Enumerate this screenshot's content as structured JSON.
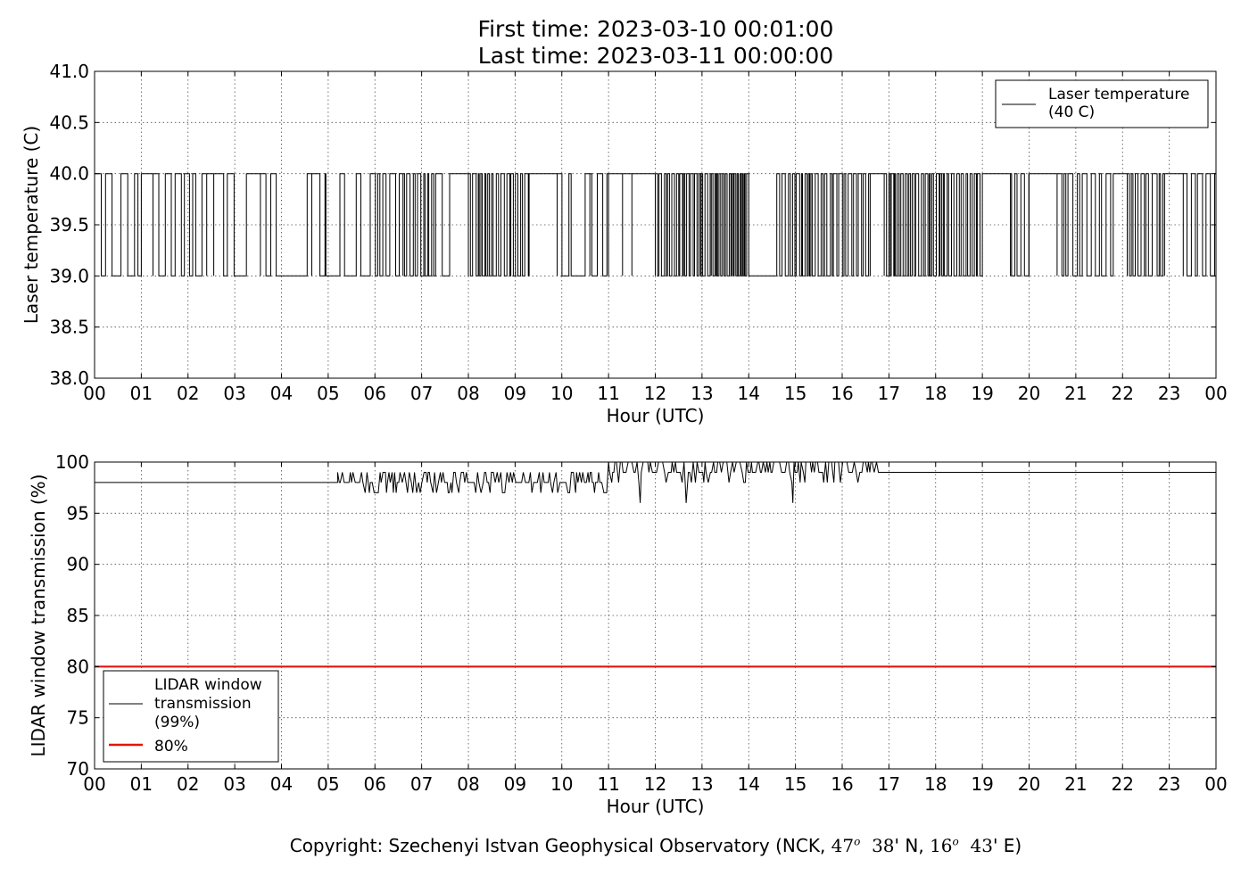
{
  "figure": {
    "title_line1": "First time: 2023-03-10 00:01:00",
    "title_line2": "Last time: 2023-03-11 00:00:00",
    "copyright_prefix": "Copyright: Szechenyi Istvan Geophysical Observatory (NCK, ",
    "lat_deg": "47",
    "lat_min": "38",
    "lat_hemi": "N, ",
    "lon_deg": "16",
    "lon_min": "43",
    "lon_hemi": "E)",
    "degree_symbol": "o"
  },
  "chart_data": [
    {
      "type": "line",
      "xlabel": "Hour (UTC)",
      "ylabel": "Laser temperature (C)",
      "xlim": [
        0,
        24
      ],
      "ylim": [
        38.0,
        41.0
      ],
      "xticks": [
        "00",
        "01",
        "02",
        "03",
        "04",
        "05",
        "06",
        "07",
        "08",
        "09",
        "10",
        "11",
        "12",
        "13",
        "14",
        "15",
        "16",
        "17",
        "18",
        "19",
        "20",
        "21",
        "22",
        "23",
        "00"
      ],
      "yticks": [
        "38.0",
        "38.5",
        "39.0",
        "39.5",
        "40.0",
        "40.5",
        "41.0"
      ],
      "grid": true,
      "legend_position": "top-right",
      "series": [
        {
          "name": "Laser temperature\n(40 C)",
          "color": "#000000",
          "values_range": [
            39.0,
            40.0
          ],
          "toggle_intervals_hours": [
            [
              0.0,
              1.0,
              0.12
            ],
            [
              1.0,
              1.25,
              0.0
            ],
            [
              1.25,
              2.4,
              0.1
            ],
            [
              2.4,
              2.55,
              0.0
            ],
            [
              2.55,
              3.0,
              0.15
            ],
            [
              3.25,
              3.55,
              0.0
            ],
            [
              3.55,
              4.0,
              0.14
            ],
            [
              4.55,
              4.65,
              0.0
            ],
            [
              4.65,
              4.95,
              0.12
            ],
            [
              5.25,
              5.35,
              0.0
            ],
            [
              5.6,
              5.7,
              0.0
            ],
            [
              5.9,
              6.6,
              0.08
            ],
            [
              6.6,
              7.3,
              0.05
            ],
            [
              7.3,
              7.6,
              0.2
            ],
            [
              7.6,
              8.0,
              0.0
            ],
            [
              8.0,
              9.3,
              0.05
            ],
            [
              9.3,
              9.9,
              0.0
            ],
            [
              9.9,
              10.2,
              0.1
            ],
            [
              10.5,
              10.6,
              0.0
            ],
            [
              10.6,
              11.0,
              0.1
            ],
            [
              11.0,
              11.3,
              0.0
            ],
            [
              11.3,
              11.5,
              0.0
            ],
            [
              11.5,
              12.0,
              0.0
            ],
            [
              12.0,
              13.2,
              0.04
            ],
            [
              13.2,
              14.0,
              0.03
            ],
            [
              14.6,
              16.6,
              0.05
            ],
            [
              16.6,
              16.9,
              0.0
            ],
            [
              16.9,
              19.0,
              0.04
            ],
            [
              19.0,
              19.6,
              0.0
            ],
            [
              19.6,
              20.0,
              0.06
            ],
            [
              20.0,
              20.6,
              0.0
            ],
            [
              20.6,
              21.8,
              0.07
            ],
            [
              21.8,
              22.1,
              0.0
            ],
            [
              22.1,
              22.9,
              0.07
            ],
            [
              22.9,
              23.3,
              0.0
            ],
            [
              23.3,
              24.0,
              0.08
            ]
          ]
        }
      ]
    },
    {
      "type": "line",
      "xlabel": "Hour (UTC)",
      "ylabel": "LIDAR window transmission (%)",
      "xlim": [
        0,
        24
      ],
      "ylim": [
        70,
        100
      ],
      "xticks": [
        "00",
        "01",
        "02",
        "03",
        "04",
        "05",
        "06",
        "07",
        "08",
        "09",
        "10",
        "11",
        "12",
        "13",
        "14",
        "15",
        "16",
        "17",
        "18",
        "19",
        "20",
        "21",
        "22",
        "23",
        "00"
      ],
      "yticks": [
        "70",
        "75",
        "80",
        "85",
        "90",
        "95",
        "100"
      ],
      "grid": true,
      "legend_position": "lower-left",
      "series": [
        {
          "name": "LIDAR window\ntransmission\n(99%)",
          "color": "#000000",
          "segments": [
            {
              "from_hour": 0.0,
              "to_hour": 5.2,
              "value": 98
            },
            {
              "from_hour": 5.2,
              "to_hour": 11.0,
              "value_min": 97,
              "value_max": 99,
              "typical": 98
            },
            {
              "from_hour": 11.0,
              "to_hour": 16.8,
              "value_min": 96,
              "value_max": 100,
              "typical": 99
            },
            {
              "from_hour": 16.8,
              "to_hour": 24.0,
              "value": 99
            }
          ]
        },
        {
          "name": "80%",
          "color": "#e3140e",
          "value": 80
        }
      ]
    }
  ]
}
